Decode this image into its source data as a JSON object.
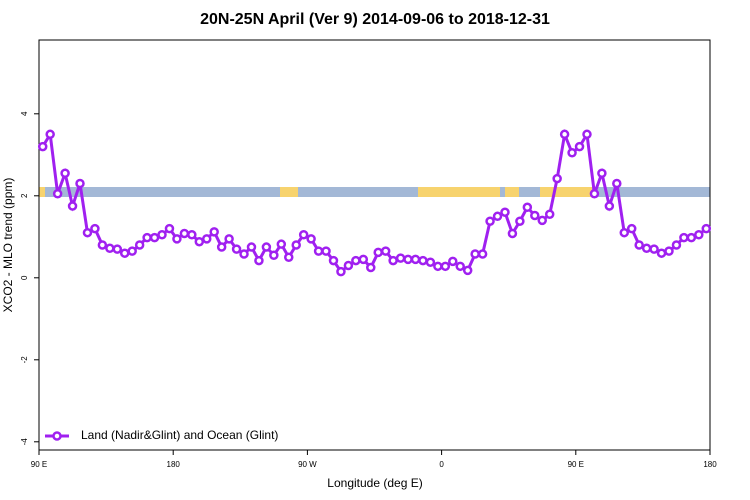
{
  "chart_data": {
    "type": "line",
    "title": "20N-25N April (Ver 9)   2014-09-06 to 2018-12-31",
    "x_label": "Longitude (deg E)",
    "y_label": "XCO2 - MLO trend (ppm)",
    "xlim": [
      90,
      540
    ],
    "ylim": [
      -4.2,
      5.8
    ],
    "xticks": [
      {
        "value": 90,
        "label": "90 E"
      },
      180,
      {
        "value": 270,
        "label": "90 W"
      },
      {
        "value": 360,
        "label": "0"
      },
      {
        "value": 450,
        "label": "90 E"
      },
      {
        "value": 540,
        "label": "180"
      }
    ],
    "yticks": [
      -4,
      -2,
      0,
      2,
      4
    ],
    "legend": "bottom-left",
    "x": [
      92.5,
      97.5,
      102.5,
      107.5,
      112.5,
      117.5,
      122.5,
      127.5,
      132.5,
      137.5,
      142.5,
      147.5,
      152.5,
      157.5,
      162.5,
      167.5,
      172.5,
      177.5,
      182.5,
      187.5,
      192.5,
      197.5,
      202.5,
      207.5,
      212.5,
      217.5,
      222.5,
      227.5,
      232.5,
      237.5,
      242.5,
      247.5,
      252.5,
      257.5,
      262.5,
      267.5,
      272.5,
      277.5,
      282.5,
      287.5,
      292.5,
      297.5,
      302.5,
      307.5,
      312.5,
      317.5,
      322.5,
      327.5,
      332.5,
      337.5,
      342.5,
      347.5,
      352.5,
      357.5,
      362.5,
      367.5,
      372.5,
      377.5,
      382.5,
      387.5,
      392.5,
      397.5,
      402.5,
      407.5,
      412.5,
      417.5,
      422.5,
      427.5,
      432.5,
      437.5,
      442.5,
      447.5,
      452.5,
      457.5,
      462.5,
      467.5,
      472.5,
      477.5,
      482.5,
      487.5,
      492.5,
      497.5,
      502.5,
      507.5,
      512.5,
      517.5,
      522.5,
      527.5,
      532.5,
      537.5
    ],
    "series": [
      {
        "name": "Land (Nadir&Glint) and Ocean (Glint)",
        "color": "#a020f0",
        "values": [
          3.2,
          3.5,
          2.05,
          2.55,
          1.75,
          2.3,
          1.1,
          1.2,
          0.8,
          0.72,
          0.7,
          0.6,
          0.65,
          0.8,
          0.98,
          0.98,
          1.05,
          1.2,
          0.95,
          1.08,
          1.05,
          0.88,
          0.95,
          1.12,
          0.75,
          0.95,
          0.7,
          0.58,
          0.75,
          0.42,
          0.75,
          0.55,
          0.82,
          0.5,
          0.8,
          1.05,
          0.95,
          0.65,
          0.65,
          0.42,
          0.15,
          0.3,
          0.42,
          0.45,
          0.25,
          0.62,
          0.65,
          0.42,
          0.48,
          0.45,
          0.45,
          0.42,
          0.38,
          0.28,
          0.28,
          0.4,
          0.28,
          0.18,
          0.58,
          0.58,
          1.38,
          1.5,
          1.6,
          1.08,
          1.38,
          1.72,
          1.52,
          1.4,
          1.55,
          2.42,
          3.5,
          3.05,
          3.2,
          3.5,
          2.05,
          2.55,
          1.75,
          2.3,
          1.1,
          1.2,
          0.8,
          0.72,
          0.7,
          0.6,
          0.65,
          0.8,
          0.98,
          0.98,
          1.05,
          1.2
        ]
      }
    ]
  }
}
